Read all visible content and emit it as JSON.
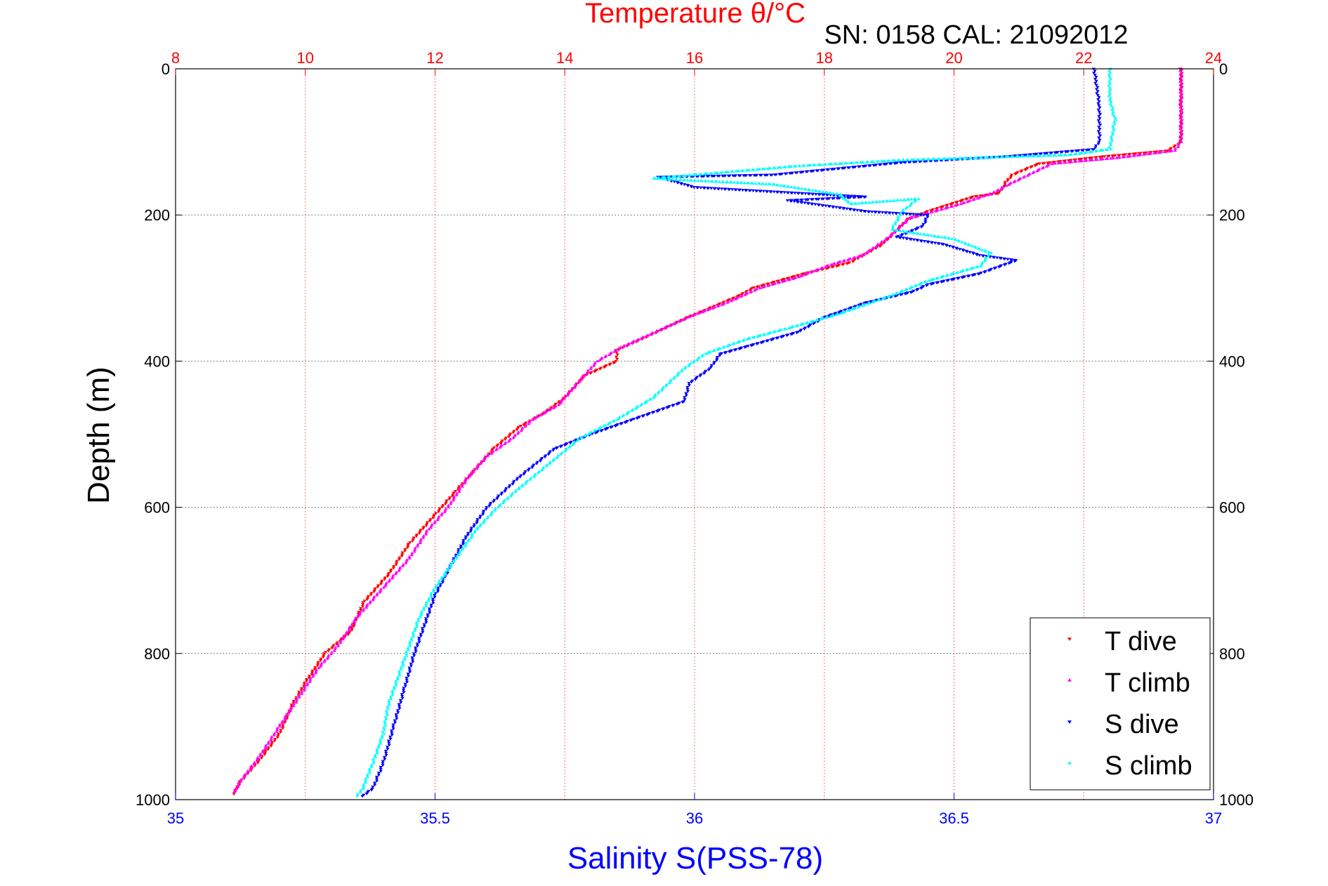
{
  "chart_data": {
    "type": "scatter",
    "title": "Temperature θ/°C",
    "subtitle": "SN: 0158  CAL: 21092012",
    "xlabel": "Salinity S(PSS-78)",
    "ylabel": "Depth (m)",
    "top_axis": {
      "label": "Temperature θ/°C",
      "ticks": [
        "8",
        "10",
        "12",
        "14",
        "16",
        "18",
        "20",
        "22",
        "24"
      ],
      "lim": [
        8,
        24
      ],
      "color": "#ff0000"
    },
    "bottom_axis": {
      "label": "Salinity S(PSS-78)",
      "ticks": [
        "35",
        "35.5",
        "36",
        "36.5",
        "37"
      ],
      "lim": [
        35,
        37
      ],
      "color": "#0000ff"
    },
    "y_axis": {
      "ticks": [
        "0",
        "200",
        "400",
        "600",
        "800",
        "1000"
      ],
      "lim": [
        0,
        1000
      ],
      "reversed": true
    },
    "grid": true,
    "legend": {
      "placement": "bottom-right",
      "entries": [
        "T dive",
        "T climb",
        "S dive",
        "S climb"
      ]
    },
    "series": [
      {
        "name": "T dive",
        "axis": "temperature",
        "color": "#ff0000",
        "marker": "down-triangle",
        "points": [
          [
            23.5,
            0
          ],
          [
            23.5,
            50
          ],
          [
            23.5,
            100
          ],
          [
            23.3,
            112
          ],
          [
            22.3,
            120
          ],
          [
            21.3,
            130
          ],
          [
            20.9,
            145
          ],
          [
            20.8,
            155
          ],
          [
            20.7,
            170
          ],
          [
            20.3,
            175
          ],
          [
            19.6,
            195
          ],
          [
            19.3,
            205
          ],
          [
            18.9,
            240
          ],
          [
            18.4,
            265
          ],
          [
            17.7,
            280
          ],
          [
            16.9,
            300
          ],
          [
            16.7,
            310
          ],
          [
            15.9,
            340
          ],
          [
            15.3,
            365
          ],
          [
            14.8,
            385
          ],
          [
            14.8,
            400
          ],
          [
            14.3,
            420
          ],
          [
            14.0,
            450
          ],
          [
            13.7,
            470
          ],
          [
            13.3,
            490
          ],
          [
            12.9,
            520
          ],
          [
            12.6,
            550
          ],
          [
            12.3,
            580
          ],
          [
            12.0,
            610
          ],
          [
            11.6,
            650
          ],
          [
            11.3,
            690
          ],
          [
            10.9,
            730
          ],
          [
            10.7,
            770
          ],
          [
            10.3,
            800
          ],
          [
            10.0,
            840
          ],
          [
            9.8,
            870
          ],
          [
            9.6,
            910
          ],
          [
            9.3,
            945
          ],
          [
            9.0,
            975
          ],
          [
            8.9,
            992
          ]
        ]
      },
      {
        "name": "T climb",
        "axis": "temperature",
        "color": "#ff00ff",
        "marker": "up-triangle",
        "points": [
          [
            23.5,
            0
          ],
          [
            23.5,
            50
          ],
          [
            23.5,
            100
          ],
          [
            23.4,
            112
          ],
          [
            22.5,
            122
          ],
          [
            21.5,
            130
          ],
          [
            20.8,
            160
          ],
          [
            20.6,
            170
          ],
          [
            20.1,
            185
          ],
          [
            19.3,
            205
          ],
          [
            19.0,
            230
          ],
          [
            18.6,
            255
          ],
          [
            18.1,
            268
          ],
          [
            17.6,
            285
          ],
          [
            17.0,
            300
          ],
          [
            16.5,
            320
          ],
          [
            15.9,
            340
          ],
          [
            15.4,
            360
          ],
          [
            14.9,
            380
          ],
          [
            14.5,
            400
          ],
          [
            14.2,
            430
          ],
          [
            13.9,
            460
          ],
          [
            13.5,
            480
          ],
          [
            13.2,
            505
          ],
          [
            12.8,
            530
          ],
          [
            12.5,
            560
          ],
          [
            12.2,
            600
          ],
          [
            11.9,
            630
          ],
          [
            11.6,
            670
          ],
          [
            11.2,
            710
          ],
          [
            10.8,
            750
          ],
          [
            10.5,
            790
          ],
          [
            10.2,
            820
          ],
          [
            9.9,
            860
          ],
          [
            9.6,
            900
          ],
          [
            9.3,
            940
          ],
          [
            9.0,
            975
          ],
          [
            8.9,
            990
          ]
        ]
      },
      {
        "name": "S dive",
        "axis": "salinity",
        "color": "#0000ff",
        "marker": "down-triangle",
        "points": [
          [
            36.77,
            0
          ],
          [
            36.78,
            50
          ],
          [
            36.78,
            100
          ],
          [
            36.77,
            110
          ],
          [
            36.6,
            120
          ],
          [
            36.4,
            128
          ],
          [
            36.15,
            145
          ],
          [
            35.93,
            148
          ],
          [
            36.0,
            162
          ],
          [
            36.25,
            172
          ],
          [
            36.33,
            175
          ],
          [
            36.18,
            180
          ],
          [
            36.33,
            195
          ],
          [
            36.45,
            200
          ],
          [
            36.44,
            215
          ],
          [
            36.39,
            230
          ],
          [
            36.48,
            240
          ],
          [
            36.55,
            255
          ],
          [
            36.62,
            262
          ],
          [
            36.55,
            280
          ],
          [
            36.45,
            295
          ],
          [
            36.42,
            305
          ],
          [
            36.33,
            320
          ],
          [
            36.25,
            340
          ],
          [
            36.2,
            360
          ],
          [
            36.1,
            380
          ],
          [
            36.05,
            390
          ],
          [
            36.03,
            410
          ],
          [
            35.99,
            430
          ],
          [
            35.98,
            455
          ],
          [
            35.88,
            480
          ],
          [
            35.8,
            500
          ],
          [
            35.73,
            520
          ],
          [
            35.66,
            560
          ],
          [
            35.6,
            600
          ],
          [
            35.56,
            640
          ],
          [
            35.53,
            680
          ],
          [
            35.5,
            720
          ],
          [
            35.48,
            760
          ],
          [
            35.46,
            800
          ],
          [
            35.44,
            850
          ],
          [
            35.42,
            900
          ],
          [
            35.4,
            950
          ],
          [
            35.38,
            985
          ],
          [
            35.36,
            995
          ]
        ]
      },
      {
        "name": "S climb",
        "axis": "salinity",
        "color": "#00ffff",
        "marker": "up-triangle",
        "points": [
          [
            36.8,
            0
          ],
          [
            36.8,
            40
          ],
          [
            36.81,
            70
          ],
          [
            36.8,
            110
          ],
          [
            36.72,
            118
          ],
          [
            36.4,
            125
          ],
          [
            36.2,
            133
          ],
          [
            35.92,
            150
          ],
          [
            35.97,
            152
          ],
          [
            36.06,
            155
          ],
          [
            36.15,
            158
          ],
          [
            36.28,
            172
          ],
          [
            36.3,
            185
          ],
          [
            36.43,
            178
          ],
          [
            36.4,
            195
          ],
          [
            36.38,
            220
          ],
          [
            36.5,
            233
          ],
          [
            36.57,
            252
          ],
          [
            36.55,
            270
          ],
          [
            36.45,
            290
          ],
          [
            36.38,
            310
          ],
          [
            36.28,
            335
          ],
          [
            36.18,
            355
          ],
          [
            36.1,
            370
          ],
          [
            36.02,
            390
          ],
          [
            35.98,
            410
          ],
          [
            35.95,
            430
          ],
          [
            35.92,
            450
          ],
          [
            35.85,
            480
          ],
          [
            35.78,
            505
          ],
          [
            35.72,
            540
          ],
          [
            35.66,
            575
          ],
          [
            35.62,
            600
          ],
          [
            35.58,
            630
          ],
          [
            35.54,
            670
          ],
          [
            35.5,
            710
          ],
          [
            35.47,
            750
          ],
          [
            35.45,
            790
          ],
          [
            35.43,
            830
          ],
          [
            35.41,
            870
          ],
          [
            35.4,
            910
          ],
          [
            35.38,
            950
          ],
          [
            35.36,
            985
          ],
          [
            35.35,
            995
          ]
        ]
      }
    ]
  }
}
